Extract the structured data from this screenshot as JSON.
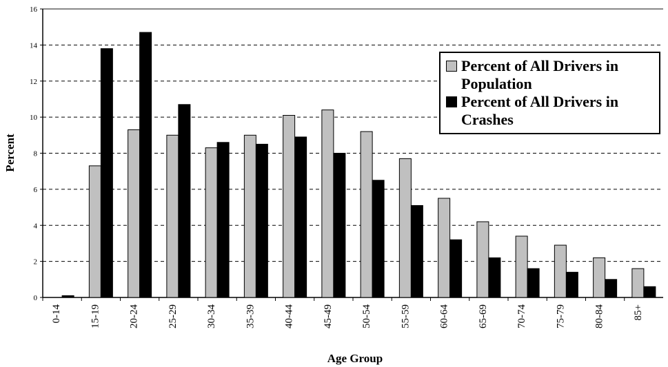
{
  "chart_data": {
    "type": "bar",
    "x_label": "Age Group",
    "y_label": "Percent",
    "categories": [
      "0-14",
      "15-19",
      "20-24",
      "25-29",
      "30-34",
      "35-39",
      "40-44",
      "45-49",
      "50-54",
      "55-59",
      "60-64",
      "65-69",
      "70-74",
      "75-79",
      "80-84",
      "85+"
    ],
    "series": [
      {
        "name": "Percent of All Drivers in Population",
        "color": "#c0c0c0",
        "values": [
          0,
          7.3,
          9.3,
          9.0,
          8.3,
          9.0,
          10.1,
          10.4,
          9.2,
          7.7,
          5.5,
          4.2,
          3.4,
          2.9,
          2.2,
          1.6
        ]
      },
      {
        "name": "Percent of All Drivers in Crashes",
        "color": "#000000",
        "values": [
          0.1,
          13.8,
          14.7,
          10.7,
          8.6,
          8.5,
          8.9,
          8.0,
          6.5,
          5.1,
          3.2,
          2.2,
          1.6,
          1.4,
          1.0,
          0.6
        ]
      }
    ],
    "ylim": [
      0,
      16
    ],
    "yticks": [
      0,
      2,
      4,
      6,
      8,
      10,
      12,
      14,
      16
    ],
    "grid": true,
    "legend": "upper right"
  }
}
